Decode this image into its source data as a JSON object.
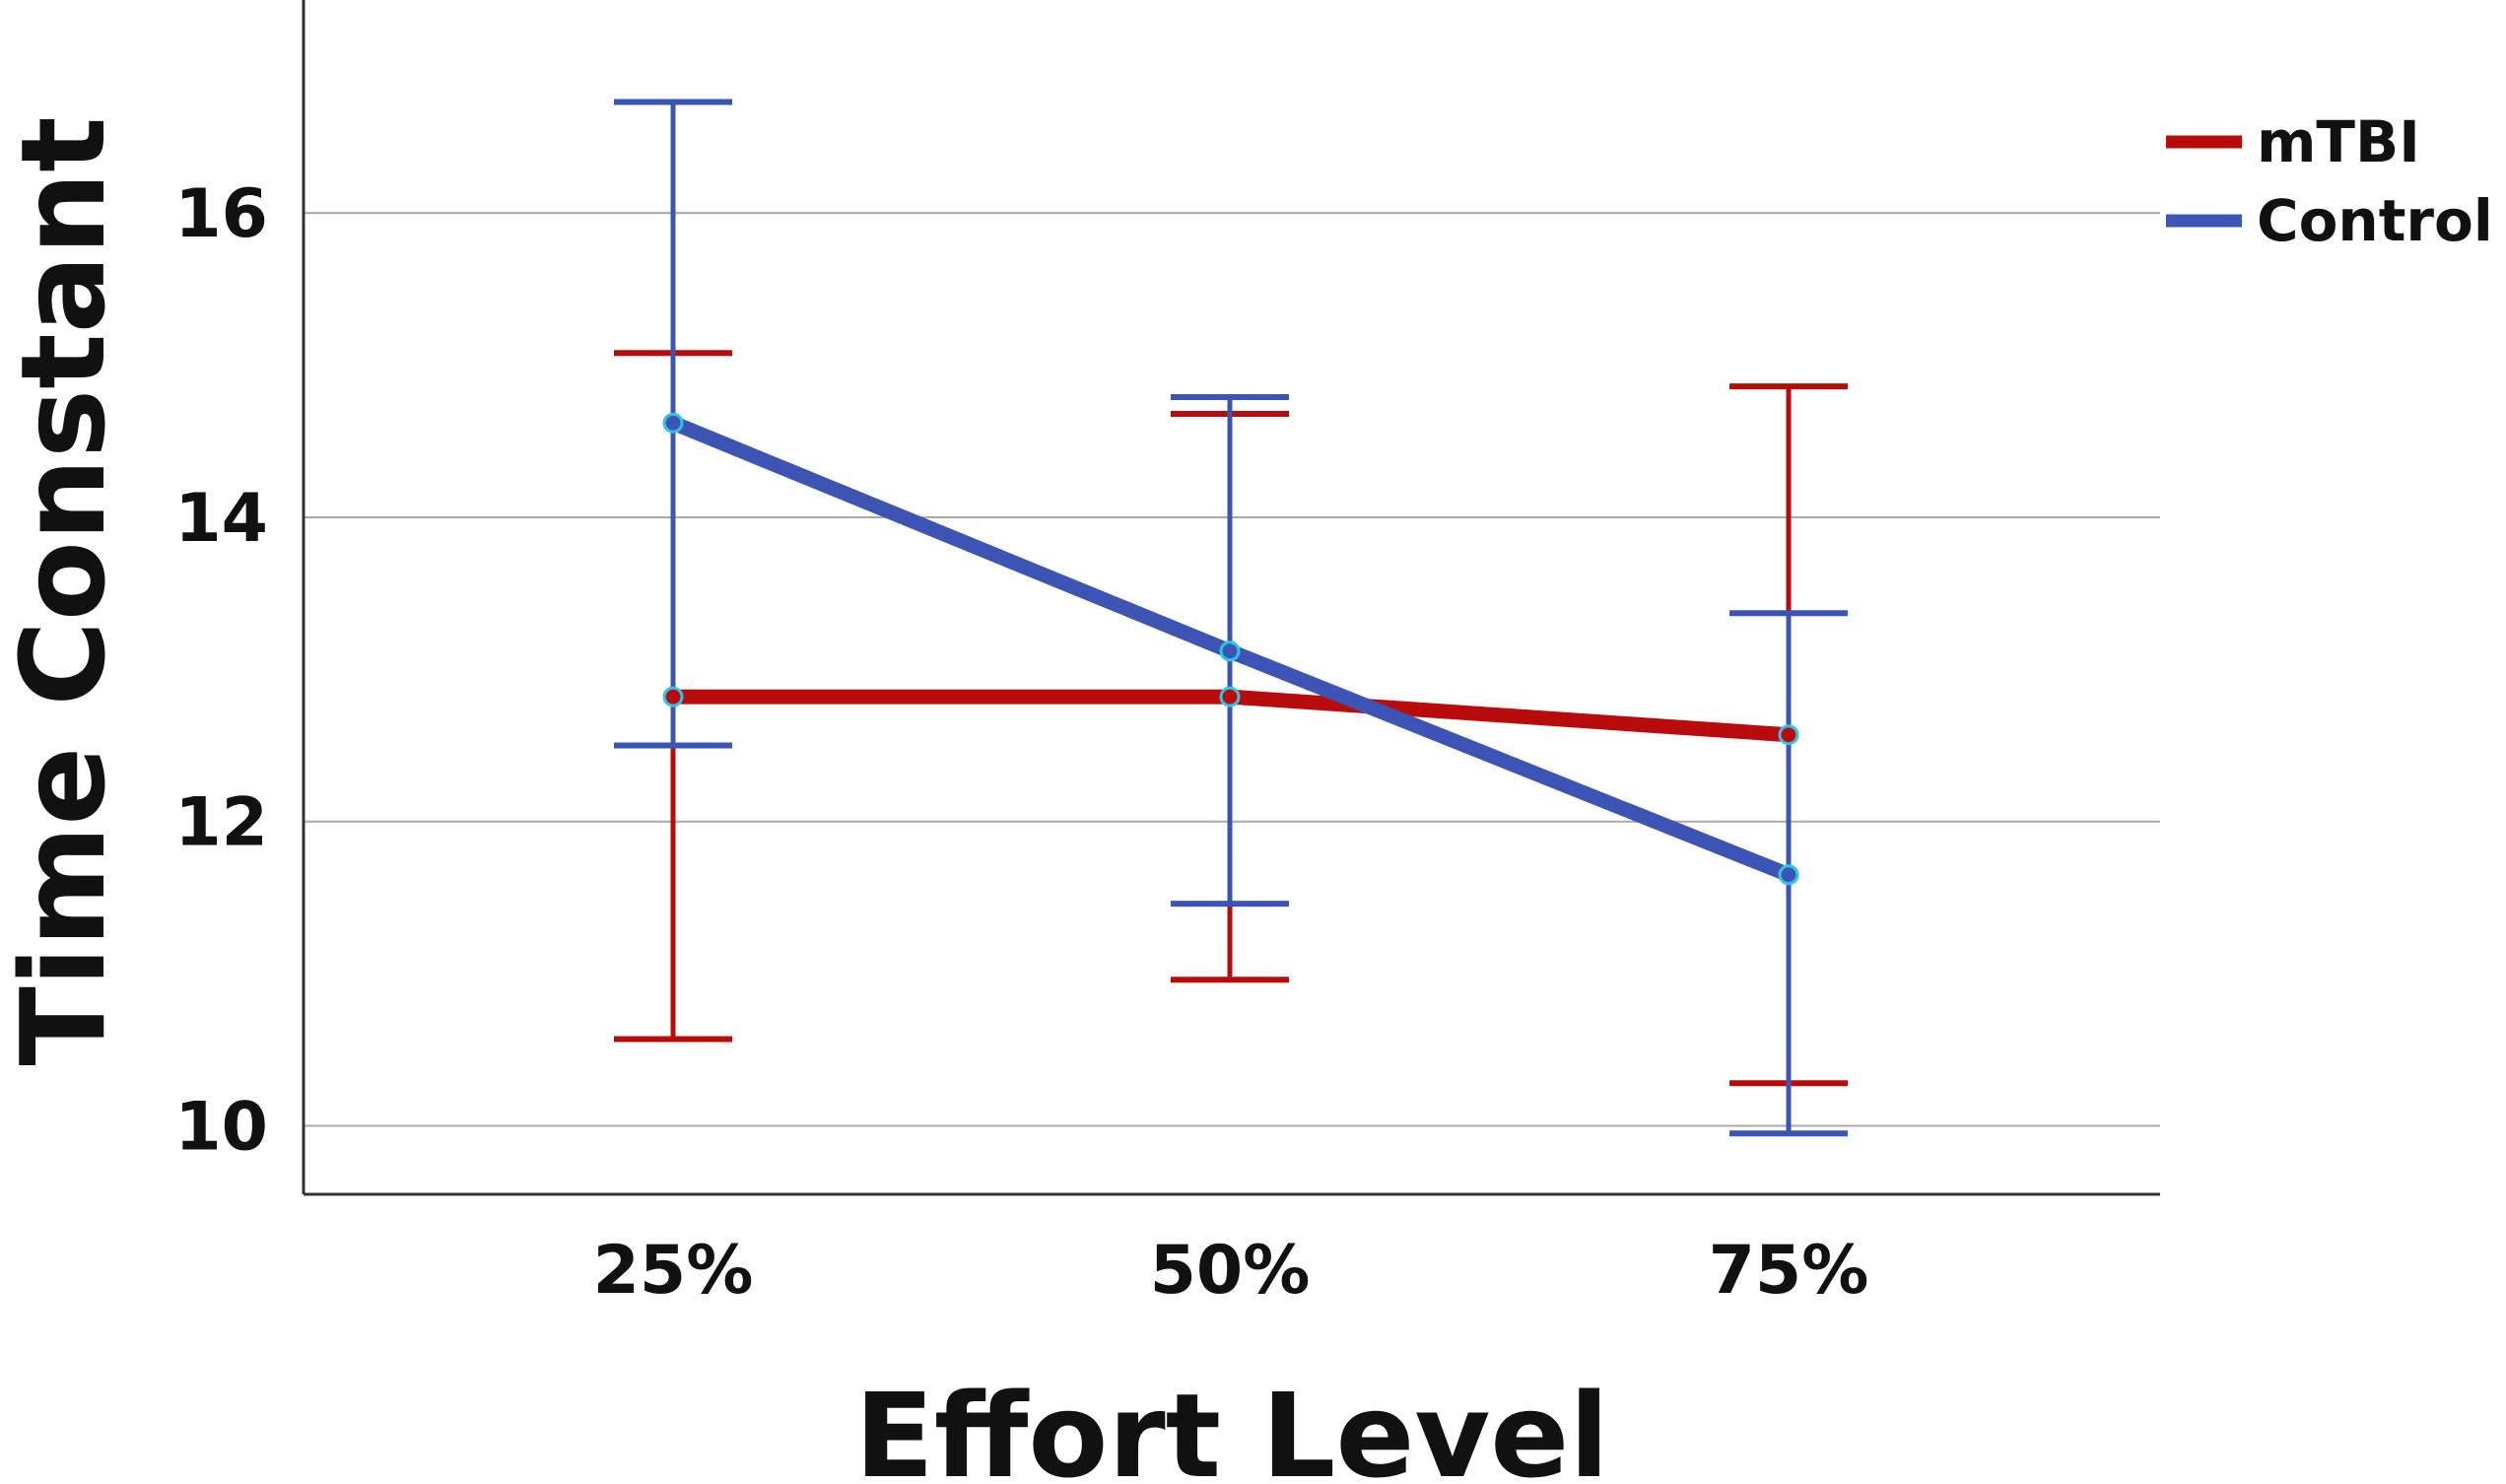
{
  "chart_data": {
    "type": "line",
    "title": "",
    "xlabel": "Effort Level",
    "ylabel": "Time Constant",
    "categories": [
      "25%",
      "50%",
      "75%"
    ],
    "ylim": [
      9.55,
      17.4
    ],
    "yticks": [
      "10",
      "12",
      "14",
      "16"
    ],
    "grid": "horizontal",
    "legend_position": "top-right",
    "series": [
      {
        "name": "mTBI",
        "color": "#b80c0c",
        "values": [
          12.82,
          12.82,
          12.57
        ],
        "error_low": [
          10.57,
          10.96,
          10.28
        ],
        "error_high": [
          15.08,
          14.68,
          14.86
        ]
      },
      {
        "name": "Control",
        "color": "#3c55b4",
        "values": [
          14.62,
          13.12,
          11.65
        ],
        "error_low": [
          12.5,
          11.46,
          9.95
        ],
        "error_high": [
          16.73,
          14.79,
          13.37
        ]
      }
    ]
  }
}
